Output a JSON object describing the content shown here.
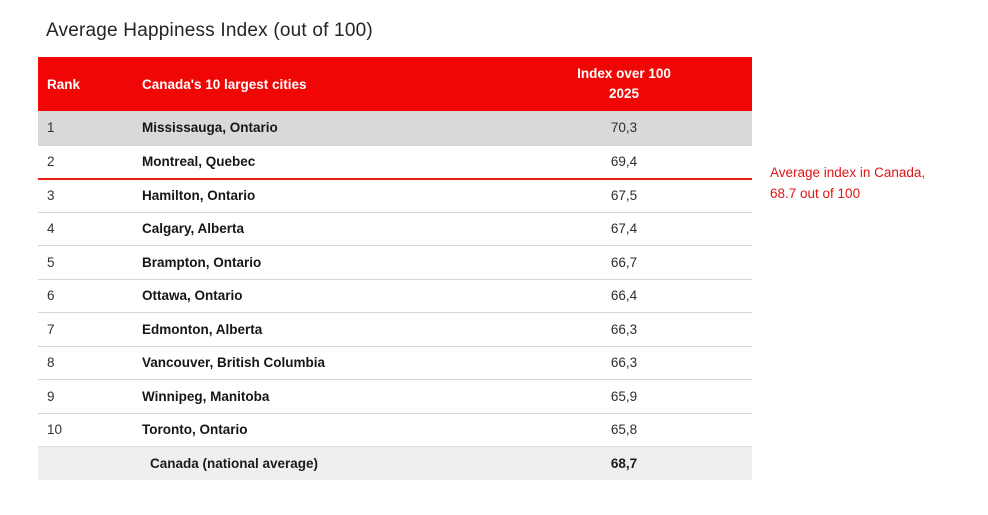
{
  "title": "Average Happiness Index (out of 100)",
  "table": {
    "headers": {
      "rank": "Rank",
      "cities": "Canada's 10 largest cities",
      "index_line1": "Index over 100",
      "index_line2": "2025"
    },
    "rows": [
      {
        "rank": "1",
        "city": "Mississauga, Ontario",
        "value": "70,3"
      },
      {
        "rank": "2",
        "city": "Montreal, Quebec",
        "value": "69,4"
      },
      {
        "rank": "3",
        "city": "Hamilton, Ontario",
        "value": "67,5"
      },
      {
        "rank": "4",
        "city": "Calgary, Alberta",
        "value": "67,4"
      },
      {
        "rank": "5",
        "city": "Brampton, Ontario",
        "value": "66,7"
      },
      {
        "rank": "6",
        "city": "Ottawa, Ontario",
        "value": "66,4"
      },
      {
        "rank": "7",
        "city": "Edmonton, Alberta",
        "value": "66,3"
      },
      {
        "rank": "8",
        "city": "Vancouver, British Columbia",
        "value": "66,3"
      },
      {
        "rank": "9",
        "city": "Winnipeg, Manitoba",
        "value": "65,9"
      },
      {
        "rank": "10",
        "city": "Toronto, Ontario",
        "value": "65,8"
      }
    ],
    "footer": {
      "rank": "",
      "city": "Canada (national average)",
      "value": "68,7"
    }
  },
  "annotation": {
    "line1": "Average index in Canada,",
    "line2": "68.7 out of 100"
  },
  "colors": {
    "accent_red": "#f10606",
    "divider_red": "#e51c18",
    "annotation_red": "#e01414",
    "row_highlight": "#d9d9d9",
    "footer_bg": "#efefef",
    "separator": "#d6d6d6",
    "text_dark": "#161616"
  },
  "chart_data": {
    "type": "table",
    "title": "Average Happiness Index (out of 100)",
    "columns": [
      "Rank",
      "Canada's 10 largest cities",
      "Index over 100 2025"
    ],
    "rows": [
      [
        1,
        "Mississauga, Ontario",
        70.3
      ],
      [
        2,
        "Montreal, Quebec",
        69.4
      ],
      [
        3,
        "Hamilton, Ontario",
        67.5
      ],
      [
        4,
        "Calgary, Alberta",
        67.4
      ],
      [
        5,
        "Brampton, Ontario",
        66.7
      ],
      [
        6,
        "Ottawa, Ontario",
        66.4
      ],
      [
        7,
        "Edmonton, Alberta",
        66.3
      ],
      [
        8,
        "Vancouver, British Columbia",
        66.3
      ],
      [
        9,
        "Winnipeg, Manitoba",
        65.9
      ],
      [
        10,
        "Toronto, Ontario",
        65.8
      ]
    ],
    "footer_row": [
      "",
      "Canada (national average)",
      68.7
    ],
    "annotation": "Average index in Canada, 68.7 out of 100",
    "notes": "Cell values use comma decimal separator; row 1 highlighted gray; red divider line after rank 2 (national-average cut-off); footer row shows national average."
  }
}
